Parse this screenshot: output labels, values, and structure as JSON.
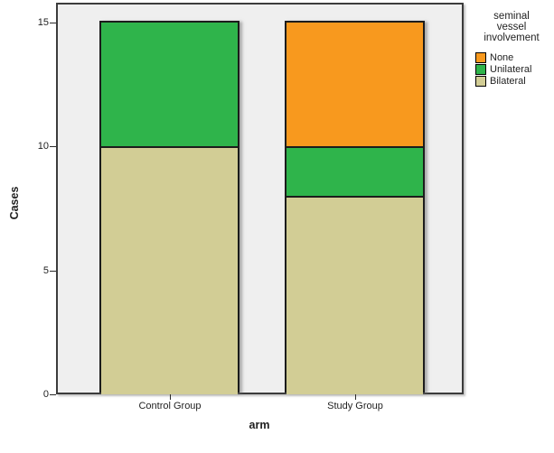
{
  "chart_data": {
    "type": "stacked_bar",
    "title": "",
    "xlabel": "arm",
    "ylabel": "Cases",
    "categories": [
      "Control Group",
      "Study Group"
    ],
    "series": [
      {
        "name": "Bilateral",
        "color": "#D2CD95",
        "values": [
          10,
          8
        ]
      },
      {
        "name": "Unilateral",
        "color": "#2FB44B",
        "values": [
          5,
          2
        ]
      },
      {
        "name": "None",
        "color": "#F8991E",
        "values": [
          0,
          5
        ]
      }
    ],
    "stack_totals": [
      15,
      15
    ],
    "ylim": [
      0,
      15
    ],
    "yticks": [
      0,
      5,
      10,
      15
    ],
    "grid": false,
    "legend": {
      "position": "right",
      "title_lines": [
        "seminal",
        "vessel",
        "involvement"
      ],
      "entries": [
        {
          "label": "None",
          "color": "#F8991E"
        },
        {
          "label": "Unilateral",
          "color": "#2FB44B"
        },
        {
          "label": "Bilateral",
          "color": "#D2CD95"
        }
      ]
    },
    "colors": {
      "plot_background": "#EFEFEF",
      "plot_border": "#3C3C3C",
      "bar_border": "#1C1C1C",
      "text": "#1F1F1F"
    }
  }
}
